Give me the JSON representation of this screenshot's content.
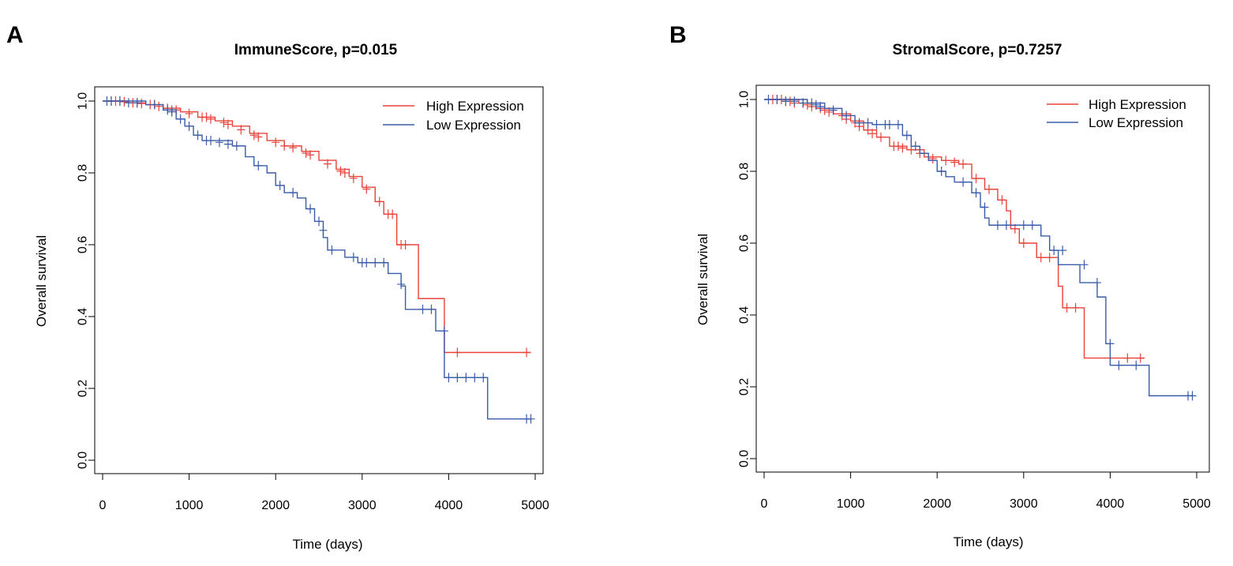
{
  "colors": {
    "high": "#e8423a",
    "low": "#3a5ca8",
    "axis": "#000000"
  },
  "chart_data": [
    {
      "type": "line",
      "panel": "A",
      "title": "ImmuneScore, p=0.015",
      "xlabel": "Time (days)",
      "ylabel": "Overall survival",
      "xlim": [
        0,
        5000
      ],
      "ylim": [
        0,
        1
      ],
      "xticks": [
        0,
        1000,
        2000,
        3000,
        4000,
        5000
      ],
      "yticks": [
        0.0,
        0.2,
        0.4,
        0.6,
        0.8,
        1.0
      ],
      "xtick_labels": [
        "0",
        "1000",
        "2000",
        "3000",
        "4000",
        "5000"
      ],
      "ytick_labels": [
        "0.0",
        "0.2",
        "0.4",
        "0.6",
        "0.8",
        "1.0"
      ],
      "legend": {
        "position": "top-right",
        "entries": [
          "High Expression",
          "Low Expression"
        ]
      },
      "series": [
        {
          "name": "High Expression",
          "color_key": "high",
          "steps": [
            [
              0,
              1.0
            ],
            [
              300,
              0.995
            ],
            [
              500,
              0.99
            ],
            [
              700,
              0.98
            ],
            [
              900,
              0.97
            ],
            [
              1100,
              0.955
            ],
            [
              1300,
              0.945
            ],
            [
              1500,
              0.93
            ],
            [
              1700,
              0.91
            ],
            [
              1900,
              0.89
            ],
            [
              2100,
              0.875
            ],
            [
              2300,
              0.86
            ],
            [
              2500,
              0.835
            ],
            [
              2700,
              0.81
            ],
            [
              2850,
              0.79
            ],
            [
              3000,
              0.76
            ],
            [
              3150,
              0.72
            ],
            [
              3250,
              0.685
            ],
            [
              3400,
              0.6
            ],
            [
              3650,
              0.45
            ],
            [
              3950,
              0.3
            ],
            [
              4950,
              0.3
            ]
          ],
          "censored": [
            [
              100,
              1.0
            ],
            [
              150,
              1.0
            ],
            [
              200,
              1.0
            ],
            [
              250,
              0.998
            ],
            [
              350,
              0.995
            ],
            [
              400,
              0.995
            ],
            [
              450,
              0.993
            ],
            [
              550,
              0.99
            ],
            [
              600,
              0.99
            ],
            [
              650,
              0.985
            ],
            [
              750,
              0.98
            ],
            [
              800,
              0.975
            ],
            [
              850,
              0.975
            ],
            [
              1000,
              0.965
            ],
            [
              1150,
              0.955
            ],
            [
              1200,
              0.955
            ],
            [
              1250,
              0.95
            ],
            [
              1400,
              0.94
            ],
            [
              1450,
              0.935
            ],
            [
              1600,
              0.92
            ],
            [
              1750,
              0.905
            ],
            [
              1800,
              0.9
            ],
            [
              2000,
              0.885
            ],
            [
              2100,
              0.875
            ],
            [
              2200,
              0.87
            ],
            [
              2350,
              0.855
            ],
            [
              2400,
              0.85
            ],
            [
              2600,
              0.825
            ],
            [
              2750,
              0.805
            ],
            [
              2800,
              0.8
            ],
            [
              2900,
              0.785
            ],
            [
              3050,
              0.755
            ],
            [
              3200,
              0.72
            ],
            [
              3300,
              0.685
            ],
            [
              3350,
              0.685
            ],
            [
              3450,
              0.6
            ],
            [
              3500,
              0.6
            ],
            [
              4100,
              0.3
            ],
            [
              4900,
              0.3
            ]
          ]
        },
        {
          "name": "Low Expression",
          "color_key": "low",
          "steps": [
            [
              0,
              1.0
            ],
            [
              500,
              0.99
            ],
            [
              700,
              0.975
            ],
            [
              850,
              0.95
            ],
            [
              950,
              0.93
            ],
            [
              1050,
              0.905
            ],
            [
              1150,
              0.89
            ],
            [
              1500,
              0.875
            ],
            [
              1650,
              0.845
            ],
            [
              1750,
              0.82
            ],
            [
              1900,
              0.8
            ],
            [
              2000,
              0.765
            ],
            [
              2100,
              0.745
            ],
            [
              2250,
              0.73
            ],
            [
              2350,
              0.7
            ],
            [
              2450,
              0.665
            ],
            [
              2550,
              0.62
            ],
            [
              2600,
              0.585
            ],
            [
              2800,
              0.565
            ],
            [
              2950,
              0.55
            ],
            [
              3300,
              0.52
            ],
            [
              3450,
              0.485
            ],
            [
              3500,
              0.42
            ],
            [
              3850,
              0.36
            ],
            [
              3950,
              0.23
            ],
            [
              4450,
              0.115
            ],
            [
              4950,
              0.115
            ]
          ],
          "censored": [
            [
              50,
              1.0
            ],
            [
              100,
              1.0
            ],
            [
              200,
              1.0
            ],
            [
              300,
              0.995
            ],
            [
              400,
              0.995
            ],
            [
              600,
              0.99
            ],
            [
              750,
              0.975
            ],
            [
              800,
              0.97
            ],
            [
              900,
              0.95
            ],
            [
              1000,
              0.93
            ],
            [
              1100,
              0.905
            ],
            [
              1200,
              0.89
            ],
            [
              1250,
              0.89
            ],
            [
              1350,
              0.885
            ],
            [
              1450,
              0.88
            ],
            [
              1550,
              0.875
            ],
            [
              1800,
              0.82
            ],
            [
              2050,
              0.765
            ],
            [
              2200,
              0.745
            ],
            [
              2400,
              0.7
            ],
            [
              2500,
              0.665
            ],
            [
              2550,
              0.64
            ],
            [
              2650,
              0.585
            ],
            [
              2900,
              0.565
            ],
            [
              3000,
              0.55
            ],
            [
              3050,
              0.55
            ],
            [
              3150,
              0.55
            ],
            [
              3250,
              0.55
            ],
            [
              3450,
              0.49
            ],
            [
              3700,
              0.42
            ],
            [
              3800,
              0.42
            ],
            [
              3950,
              0.36
            ],
            [
              4000,
              0.23
            ],
            [
              4100,
              0.23
            ],
            [
              4200,
              0.23
            ],
            [
              4300,
              0.23
            ],
            [
              4400,
              0.23
            ],
            [
              4900,
              0.115
            ],
            [
              4950,
              0.115
            ]
          ]
        }
      ]
    },
    {
      "type": "line",
      "panel": "B",
      "title": "StromalScore, p=0.7257",
      "xlabel": "Time (days)",
      "ylabel": "Overall survival",
      "xlim": [
        0,
        5000
      ],
      "ylim": [
        0,
        1
      ],
      "xticks": [
        0,
        1000,
        2000,
        3000,
        4000,
        5000
      ],
      "yticks": [
        0.0,
        0.2,
        0.4,
        0.6,
        0.8,
        1.0
      ],
      "xtick_labels": [
        "0",
        "1000",
        "2000",
        "3000",
        "4000",
        "5000"
      ],
      "ytick_labels": [
        "0.0",
        "0.2",
        "0.4",
        "0.6",
        "0.8",
        "1.0"
      ],
      "legend": {
        "position": "top-right",
        "entries": [
          "High Expression",
          "Low Expression"
        ]
      },
      "series": [
        {
          "name": "High Expression",
          "color_key": "high",
          "steps": [
            [
              0,
              1.0
            ],
            [
              400,
              0.99
            ],
            [
              600,
              0.975
            ],
            [
              800,
              0.96
            ],
            [
              1000,
              0.94
            ],
            [
              1150,
              0.915
            ],
            [
              1300,
              0.895
            ],
            [
              1450,
              0.87
            ],
            [
              1650,
              0.86
            ],
            [
              1850,
              0.84
            ],
            [
              2050,
              0.83
            ],
            [
              2250,
              0.82
            ],
            [
              2400,
              0.78
            ],
            [
              2550,
              0.75
            ],
            [
              2700,
              0.72
            ],
            [
              2800,
              0.69
            ],
            [
              2850,
              0.64
            ],
            [
              2950,
              0.6
            ],
            [
              3150,
              0.56
            ],
            [
              3350,
              0.56
            ],
            [
              3400,
              0.48
            ],
            [
              3450,
              0.42
            ],
            [
              3700,
              0.28
            ],
            [
              4400,
              0.28
            ]
          ],
          "censored": [
            [
              100,
              1.0
            ],
            [
              150,
              1.0
            ],
            [
              200,
              1.0
            ],
            [
              250,
              0.995
            ],
            [
              300,
              0.995
            ],
            [
              350,
              0.99
            ],
            [
              450,
              0.99
            ],
            [
              500,
              0.985
            ],
            [
              550,
              0.98
            ],
            [
              650,
              0.975
            ],
            [
              700,
              0.97
            ],
            [
              750,
              0.965
            ],
            [
              900,
              0.955
            ],
            [
              950,
              0.945
            ],
            [
              1050,
              0.935
            ],
            [
              1100,
              0.925
            ],
            [
              1200,
              0.915
            ],
            [
              1250,
              0.905
            ],
            [
              1350,
              0.895
            ],
            [
              1500,
              0.87
            ],
            [
              1550,
              0.87
            ],
            [
              1600,
              0.865
            ],
            [
              1700,
              0.86
            ],
            [
              1800,
              0.85
            ],
            [
              1950,
              0.835
            ],
            [
              2100,
              0.83
            ],
            [
              2200,
              0.825
            ],
            [
              2300,
              0.82
            ],
            [
              2450,
              0.78
            ],
            [
              2600,
              0.75
            ],
            [
              2750,
              0.72
            ],
            [
              2900,
              0.64
            ],
            [
              3000,
              0.6
            ],
            [
              3200,
              0.56
            ],
            [
              3300,
              0.56
            ],
            [
              3500,
              0.42
            ],
            [
              3600,
              0.42
            ],
            [
              4200,
              0.28
            ],
            [
              4350,
              0.28
            ]
          ]
        },
        {
          "name": "Low Expression",
          "color_key": "low",
          "steps": [
            [
              0,
              1.0
            ],
            [
              500,
              0.99
            ],
            [
              700,
              0.975
            ],
            [
              900,
              0.955
            ],
            [
              1050,
              0.935
            ],
            [
              1250,
              0.93
            ],
            [
              1600,
              0.9
            ],
            [
              1700,
              0.87
            ],
            [
              1800,
              0.85
            ],
            [
              1900,
              0.83
            ],
            [
              2000,
              0.8
            ],
            [
              2100,
              0.785
            ],
            [
              2200,
              0.77
            ],
            [
              2400,
              0.74
            ],
            [
              2500,
              0.7
            ],
            [
              2550,
              0.67
            ],
            [
              2600,
              0.65
            ],
            [
              3200,
              0.62
            ],
            [
              3300,
              0.58
            ],
            [
              3400,
              0.54
            ],
            [
              3650,
              0.49
            ],
            [
              3850,
              0.45
            ],
            [
              3950,
              0.32
            ],
            [
              4000,
              0.26
            ],
            [
              4450,
              0.175
            ],
            [
              4950,
              0.175
            ]
          ],
          "censored": [
            [
              50,
              1.0
            ],
            [
              150,
              1.0
            ],
            [
              250,
              0.995
            ],
            [
              350,
              0.995
            ],
            [
              450,
              0.99
            ],
            [
              550,
              0.99
            ],
            [
              600,
              0.985
            ],
            [
              650,
              0.98
            ],
            [
              800,
              0.97
            ],
            [
              950,
              0.955
            ],
            [
              1100,
              0.935
            ],
            [
              1200,
              0.935
            ],
            [
              1300,
              0.93
            ],
            [
              1400,
              0.93
            ],
            [
              1450,
              0.93
            ],
            [
              1550,
              0.93
            ],
            [
              1650,
              0.9
            ],
            [
              1750,
              0.87
            ],
            [
              2050,
              0.8
            ],
            [
              2300,
              0.77
            ],
            [
              2450,
              0.74
            ],
            [
              2550,
              0.7
            ],
            [
              2700,
              0.65
            ],
            [
              2800,
              0.65
            ],
            [
              3000,
              0.65
            ],
            [
              3100,
              0.65
            ],
            [
              3350,
              0.58
            ],
            [
              3450,
              0.58
            ],
            [
              3700,
              0.54
            ],
            [
              3850,
              0.49
            ],
            [
              4000,
              0.32
            ],
            [
              4100,
              0.26
            ],
            [
              4300,
              0.26
            ],
            [
              4900,
              0.175
            ],
            [
              4950,
              0.175
            ]
          ]
        }
      ]
    }
  ]
}
